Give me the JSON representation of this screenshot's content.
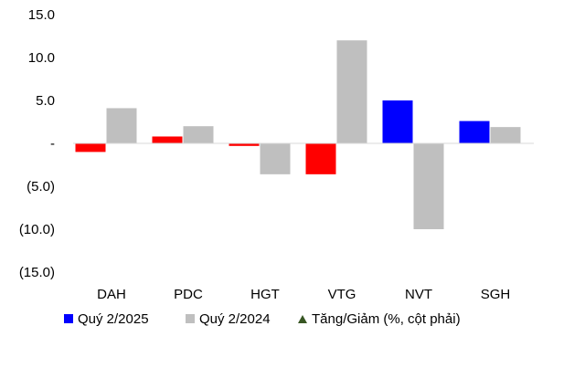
{
  "chart_data": {
    "type": "bar",
    "categories": [
      "DAH",
      "PDC",
      "HGT",
      "VTG",
      "NVT",
      "SGH"
    ],
    "series": [
      {
        "name": "Quý 2/2025",
        "values": [
          -1.0,
          0.8,
          -0.3,
          -3.6,
          5.0,
          2.6
        ],
        "colors": [
          "#ff0000",
          "#ff0000",
          "#ff0000",
          "#ff0000",
          "#0000ff",
          "#0000ff"
        ]
      },
      {
        "name": "Quý 2/2024",
        "values": [
          4.1,
          2.0,
          -3.6,
          12.0,
          -10.0,
          1.9
        ],
        "color": "#bfbfbf"
      }
    ],
    "extra_legend": {
      "name": "Tăng/Giảm (%, cột phải)",
      "marker": "triangle-up",
      "color": "#375623"
    },
    "legend_swatch_colors": [
      "#0000ff",
      "#bfbfbf"
    ],
    "ylim": [
      -15,
      15
    ],
    "yticks": [
      15,
      10,
      5,
      0,
      -5,
      -10,
      -15
    ],
    "ytick_labels": [
      "15.0",
      "10.0",
      "5.0",
      "-",
      "(5.0)",
      "(10.0)",
      "(15.0)"
    ],
    "grid": false,
    "legend_position": "bottom-left",
    "title": "",
    "xlabel": "",
    "ylabel": ""
  }
}
